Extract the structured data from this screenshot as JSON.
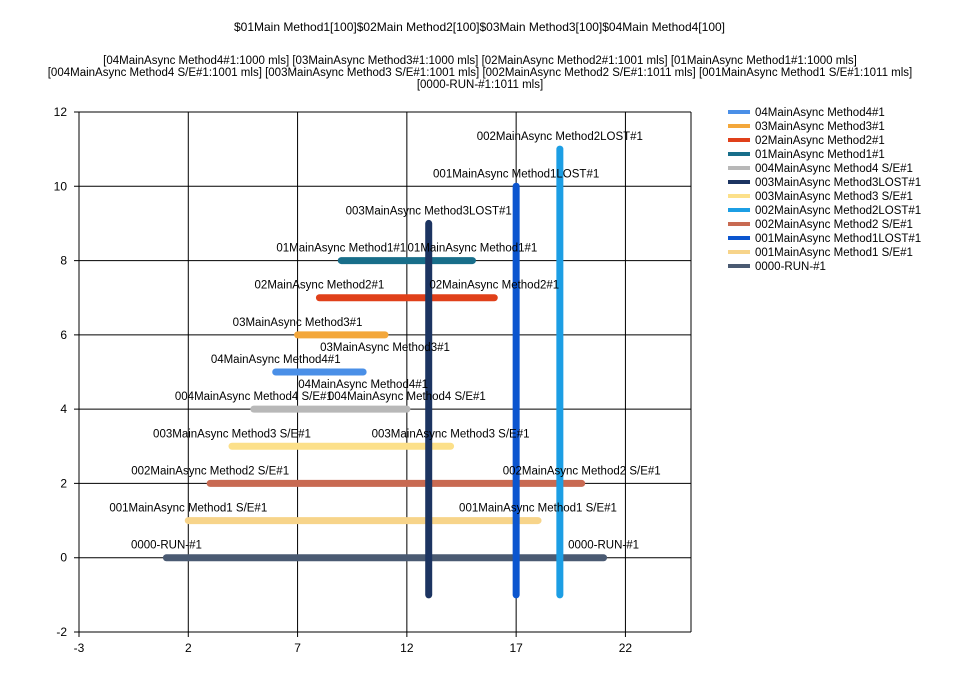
{
  "chart_data": {
    "type": "range-bar",
    "title": "$01Main Method1[100]$02Main Method2[100]$03Main Method3[100]$04Main Method4[100]",
    "subtitle": [
      "[04MainAsync Method4#1:1000 mls]",
      "[03MainAsync Method3#1:1000 mls]",
      "[02MainAsync Method2#1:1001 mls]",
      "[01MainAsync Method1#1:1000 mls]",
      "[004MainAsync Method4 S/E#1:1001 mls]",
      "[003MainAsync Method3 S/E#1:1001 mls]",
      "[002MainAsync Method2 S/E#1:1011 mls]",
      "[001MainAsync Method1 S/E#1:1011 mls]",
      "[0000-RUN-#1:1011 mls]"
    ],
    "xlim": [
      -3,
      25
    ],
    "ylim": [
      -2,
      12
    ],
    "x_ticks": [
      -3,
      2,
      7,
      12,
      17,
      22
    ],
    "x_tick_labels": [
      "-3",
      "2",
      "7",
      "12",
      "17",
      "22"
    ],
    "y_ticks": [
      -2,
      0,
      2,
      4,
      6,
      8,
      10,
      12
    ],
    "y_tick_labels": [
      "-2",
      "0",
      "2",
      "4",
      "6",
      "8",
      "10",
      "12"
    ],
    "grid": true,
    "legend_position": "right",
    "series": [
      {
        "name": "04MainAsync Method4#1",
        "color": "#4a8fe7",
        "orientation": "h",
        "pos": 5,
        "start": 6,
        "end": 10,
        "start_label": "04MainAsync Method4#1",
        "end_label": "04MainAsync Method4#1",
        "end_label_below": true
      },
      {
        "name": "03MainAsync Method3#1",
        "color": "#f3a73b",
        "orientation": "h",
        "pos": 6,
        "start": 7,
        "end": 11,
        "start_label": "03MainAsync Method3#1",
        "end_label": "03MainAsync Method3#1",
        "end_label_below": true
      },
      {
        "name": "02MainAsync Method2#1",
        "color": "#e0401a",
        "orientation": "h",
        "pos": 7,
        "start": 8,
        "end": 16,
        "start_label": "02MainAsync Method2#1",
        "end_label": "02MainAsync Method2#1",
        "end_label_below": false
      },
      {
        "name": "01MainAsync Method1#1",
        "color": "#186e8a",
        "orientation": "h",
        "pos": 8,
        "start": 9,
        "end": 15,
        "start_label": "01MainAsync Method1#1",
        "end_label": "01MainAsync Method1#1",
        "end_label_below": false
      },
      {
        "name": "004MainAsync Method4 S/E#1",
        "color": "#b8b8b8",
        "orientation": "h",
        "pos": 4,
        "start": 5,
        "end": 12,
        "start_label": "004MainAsync Method4 S/E#1",
        "end_label": "004MainAsync Method4 S/E#1",
        "end_label_below": false
      },
      {
        "name": "003MainAsync Method3LOST#1",
        "color": "#1c3461",
        "orientation": "v",
        "pos": 13,
        "start": -1,
        "end": 9,
        "end_label": "003MainAsync Method3LOST#1"
      },
      {
        "name": "003MainAsync Method3 S/E#1",
        "color": "#fce08a",
        "orientation": "h",
        "pos": 3,
        "start": 4,
        "end": 14,
        "start_label": "003MainAsync Method3 S/E#1",
        "end_label": "003MainAsync Method3 S/E#1",
        "end_label_below": false
      },
      {
        "name": "002MainAsync Method2LOST#1",
        "color": "#1c9ee4",
        "orientation": "v",
        "pos": 19,
        "start": -1,
        "end": 11,
        "end_label": "002MainAsync Method2LOST#1"
      },
      {
        "name": "002MainAsync Method2 S/E#1",
        "color": "#c86a52",
        "orientation": "h",
        "pos": 2,
        "start": 3,
        "end": 20,
        "start_label": "002MainAsync Method2 S/E#1",
        "end_label": "002MainAsync Method2 S/E#1",
        "end_label_below": false
      },
      {
        "name": "001MainAsync Method1LOST#1",
        "color": "#0b55cf",
        "orientation": "v",
        "pos": 17,
        "start": -1,
        "end": 10,
        "end_label": "001MainAsync Method1LOST#1"
      },
      {
        "name": "001MainAsync Method1 S/E#1",
        "color": "#f7d48a",
        "orientation": "h",
        "pos": 1,
        "start": 2,
        "end": 18,
        "start_label": "001MainAsync Method1 S/E#1",
        "end_label": "001MainAsync Method1 S/E#1",
        "end_label_below": false
      },
      {
        "name": "0000-RUN-#1",
        "color": "#4a5a72",
        "orientation": "h",
        "pos": 0,
        "start": 1,
        "end": 21,
        "start_label": "0000-RUN-#1",
        "end_label": "0000-RUN-#1",
        "end_label_below": false
      }
    ]
  }
}
